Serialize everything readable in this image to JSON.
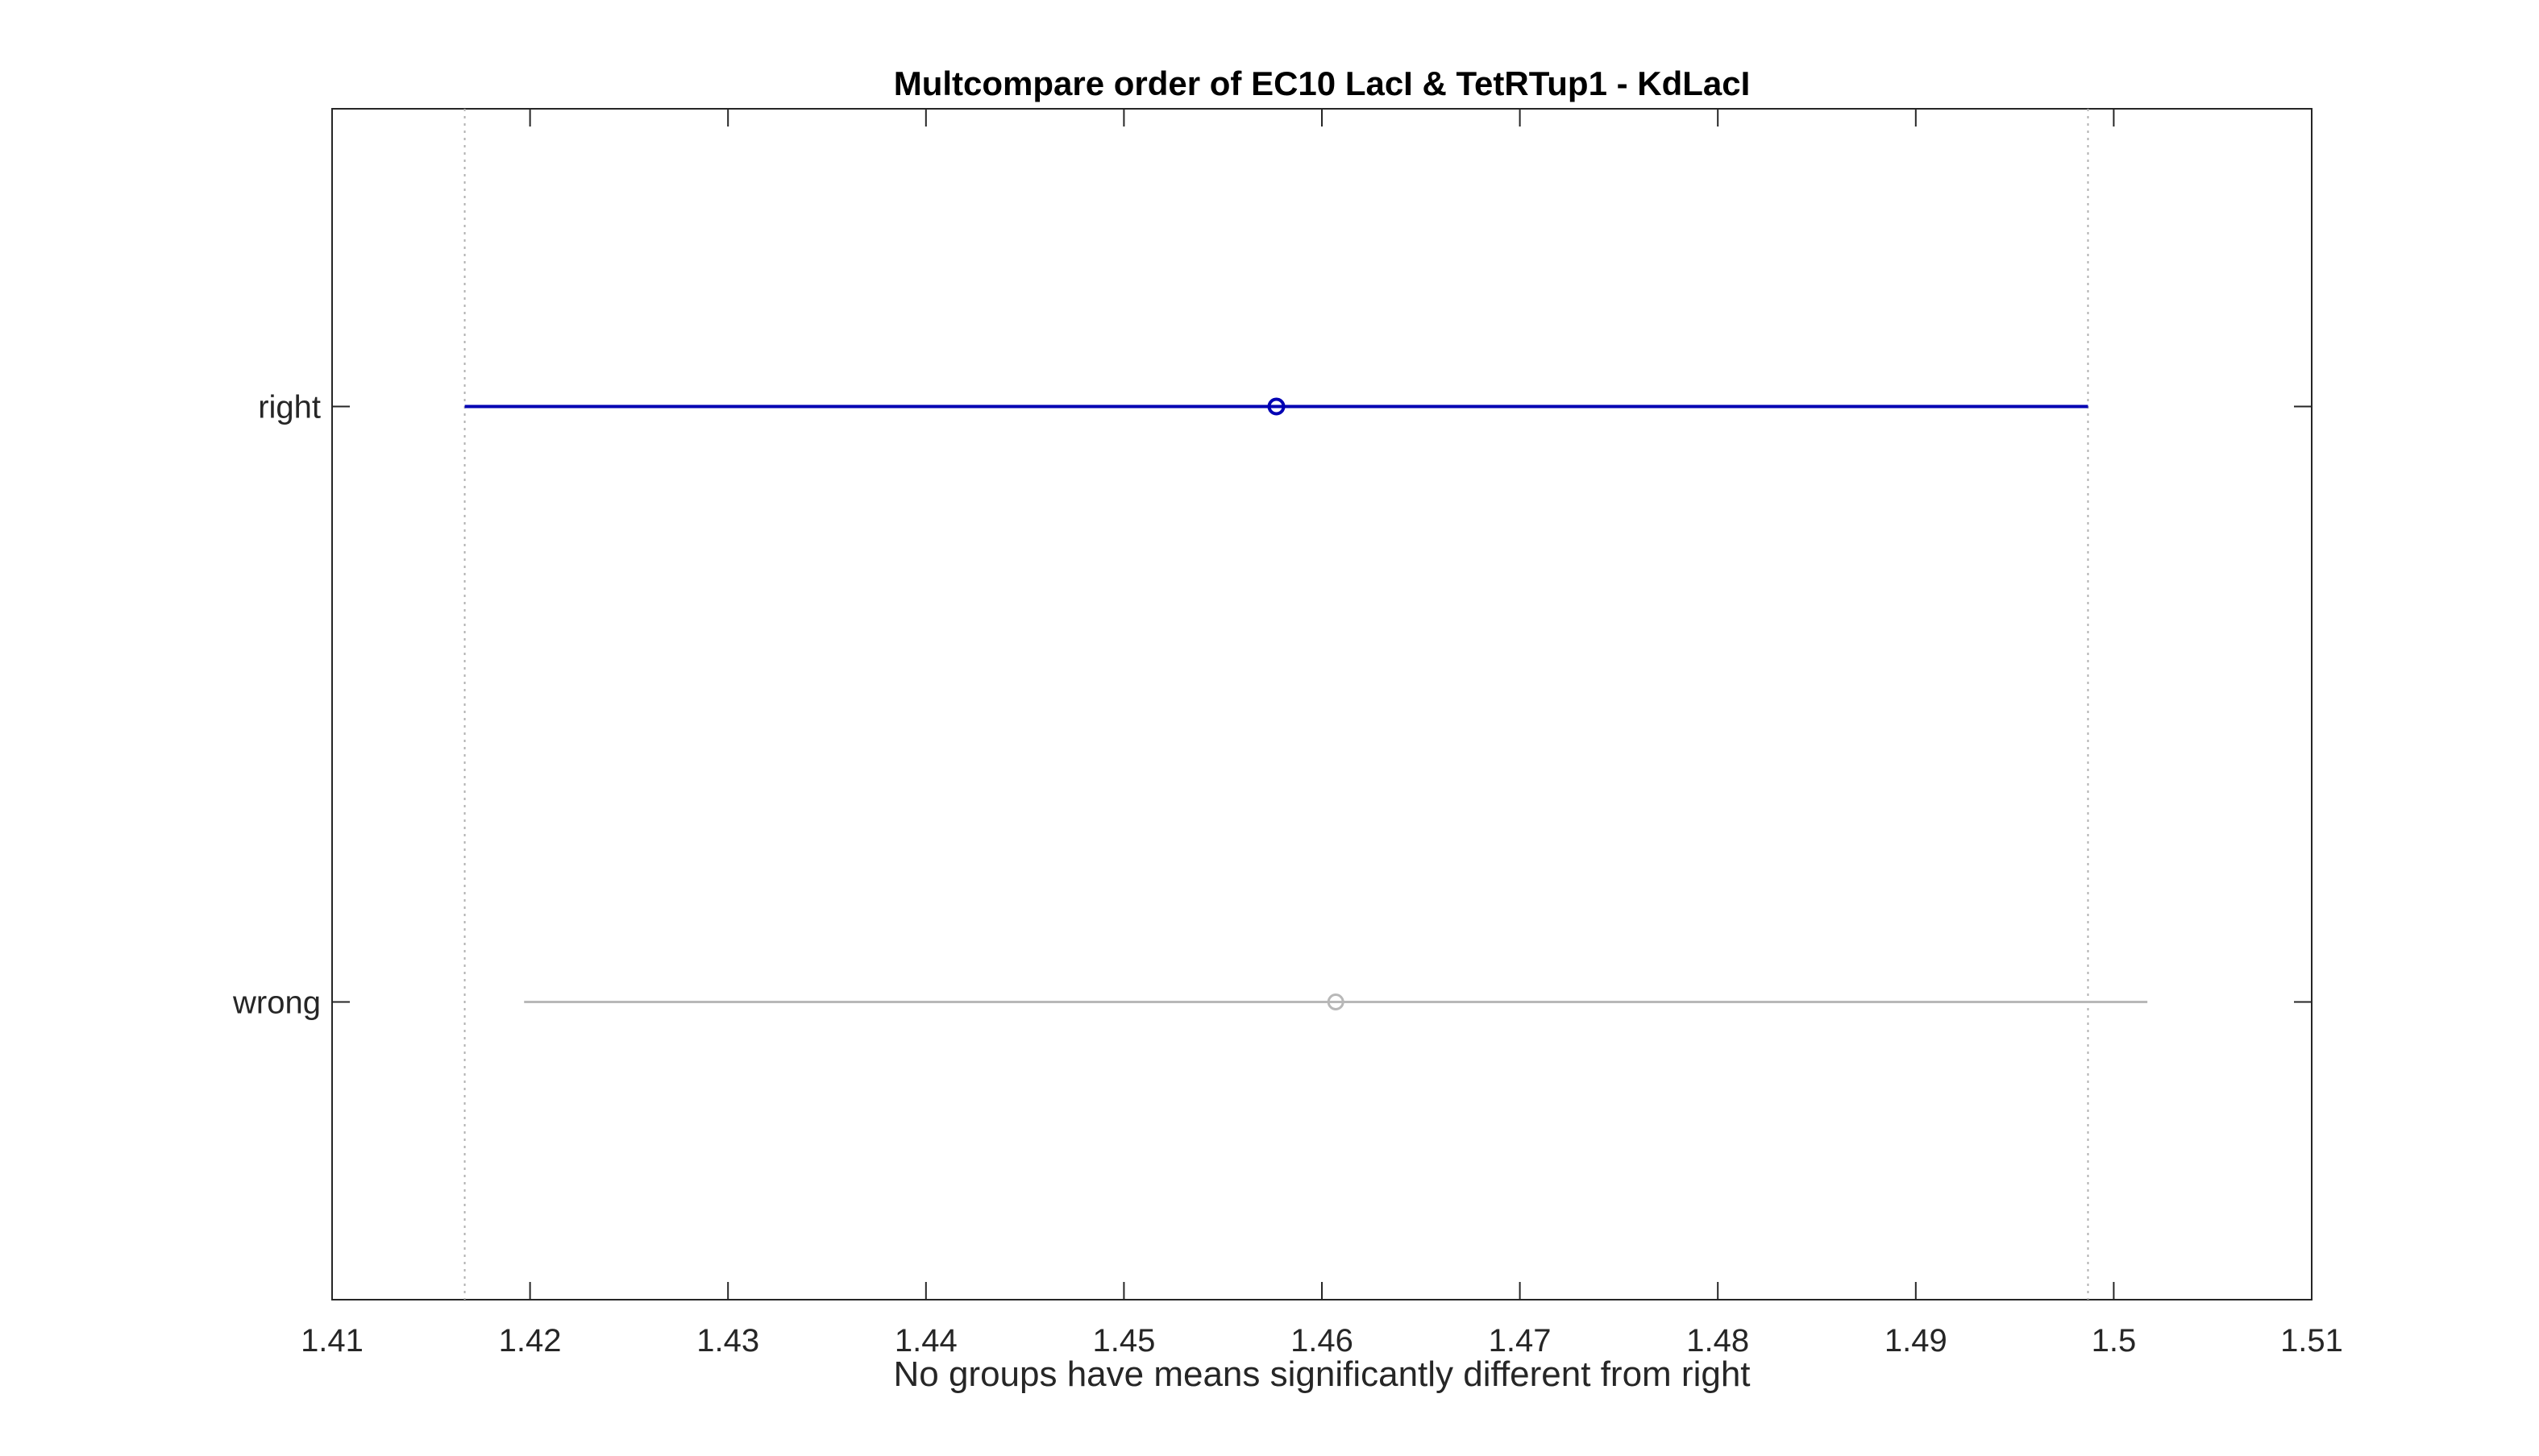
{
  "chart_data": {
    "type": "scatter",
    "title": "Multcompare order of EC10 LacI & TetRTup1 - KdLacI",
    "xlabel": "No groups have means significantly different from right",
    "ylabel": "",
    "xlim": [
      1.41,
      1.51
    ],
    "x_ticks": [
      1.41,
      1.42,
      1.43,
      1.44,
      1.45,
      1.46,
      1.47,
      1.48,
      1.49,
      1.5,
      1.51
    ],
    "x_tick_labels": [
      "1.41",
      "1.42",
      "1.43",
      "1.44",
      "1.45",
      "1.46",
      "1.47",
      "1.48",
      "1.49",
      "1.5",
      "1.51"
    ],
    "categories": [
      "right",
      "wrong"
    ],
    "grid": false,
    "reference_lines": [
      1.4167,
      1.4987
    ],
    "series": [
      {
        "category": "right",
        "mean": 1.4577,
        "lower": 1.4167,
        "upper": 1.4987,
        "color": "#0000b3",
        "highlighted": true
      },
      {
        "category": "wrong",
        "mean": 1.4607,
        "lower": 1.4197,
        "upper": 1.5017,
        "color": "#b8b8b8",
        "highlighted": false
      }
    ]
  }
}
